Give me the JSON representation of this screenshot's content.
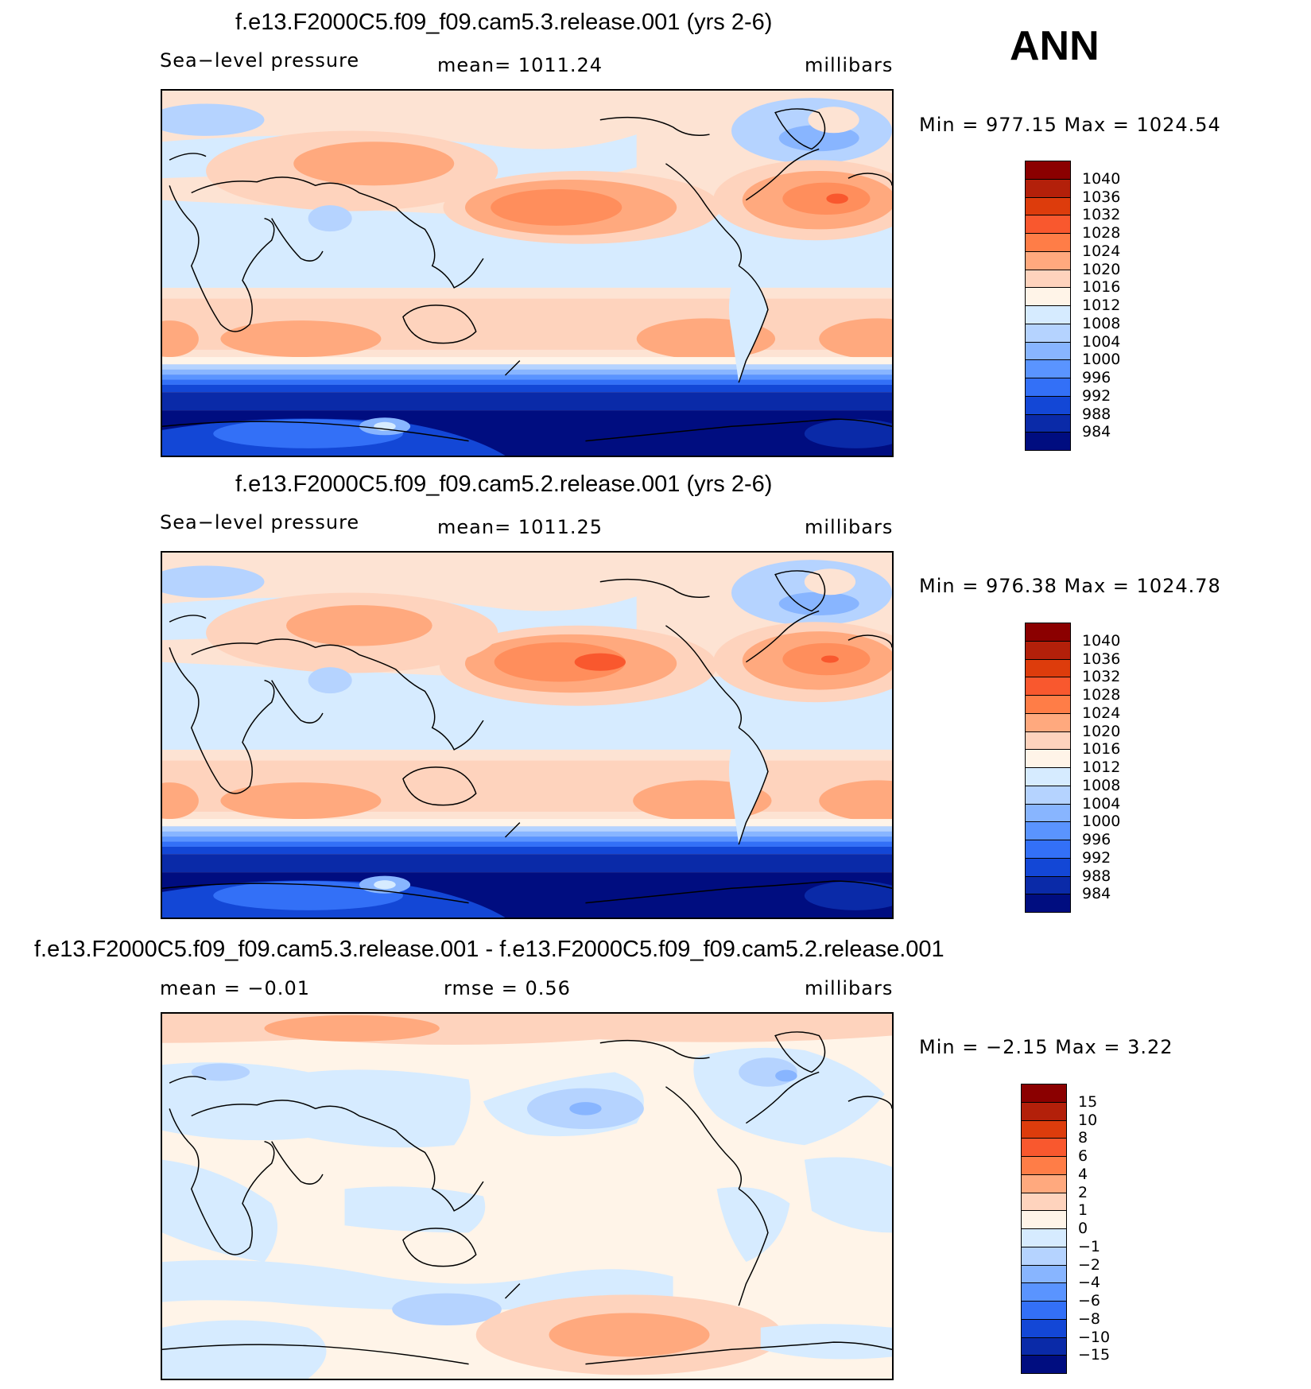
{
  "season": "ANN",
  "panels": [
    {
      "title": "f.e13.F2000C5.f09_f09.cam5.3.release.001 (yrs 2-6)",
      "left_label": "Sea−level pressure",
      "center_label": "mean=  1011.24",
      "right_label": "millibars",
      "minmax": "Min  =  977.15  Max  =  1024.54"
    },
    {
      "title": "f.e13.F2000C5.f09_f09.cam5.2.release.001 (yrs 2-6)",
      "left_label": "Sea−level pressure",
      "center_label": "mean=  1011.25",
      "right_label": "millibars",
      "minmax": "Min  =  976.38  Max  =  1024.78"
    },
    {
      "title": "f.e13.F2000C5.f09_f09.cam5.3.release.001 - f.e13.F2000C5.f09_f09.cam5.2.release.001",
      "left_label": "mean  =    −0.01",
      "center_label": "rmse  =     0.56",
      "right_label": "millibars",
      "minmax": "Min  =    −2.15  Max  =     3.22"
    }
  ],
  "colorbar_slp": {
    "labels": [
      "1040",
      "1036",
      "1032",
      "1028",
      "1024",
      "1020",
      "1016",
      "1012",
      "1008",
      "1004",
      "1000",
      "996",
      "992",
      "988",
      "984"
    ],
    "colors": [
      "#8b0000",
      "#b3200a",
      "#dd3c0c",
      "#f9582e",
      "#ff7d47",
      "#ffa97e",
      "#fed3bd",
      "#fff4e8",
      "#d6ebff",
      "#b5d3ff",
      "#88b5ff",
      "#5a94ff",
      "#3370f7",
      "#1347d6",
      "#0a2aa8",
      "#000d80"
    ]
  },
  "colorbar_diff": {
    "labels": [
      "15",
      "10",
      "8",
      "6",
      "4",
      "2",
      "1",
      "0",
      "−1",
      "−2",
      "−4",
      "−6",
      "−8",
      "−10",
      "−15"
    ],
    "colors": [
      "#8b0000",
      "#b3200a",
      "#dd3c0c",
      "#f9582e",
      "#ff7d47",
      "#ffa97e",
      "#fed3bd",
      "#fff4e8",
      "#d6ebff",
      "#b5d3ff",
      "#88b5ff",
      "#5a94ff",
      "#3370f7",
      "#1347d6",
      "#0a2aa8",
      "#000d80"
    ]
  }
}
